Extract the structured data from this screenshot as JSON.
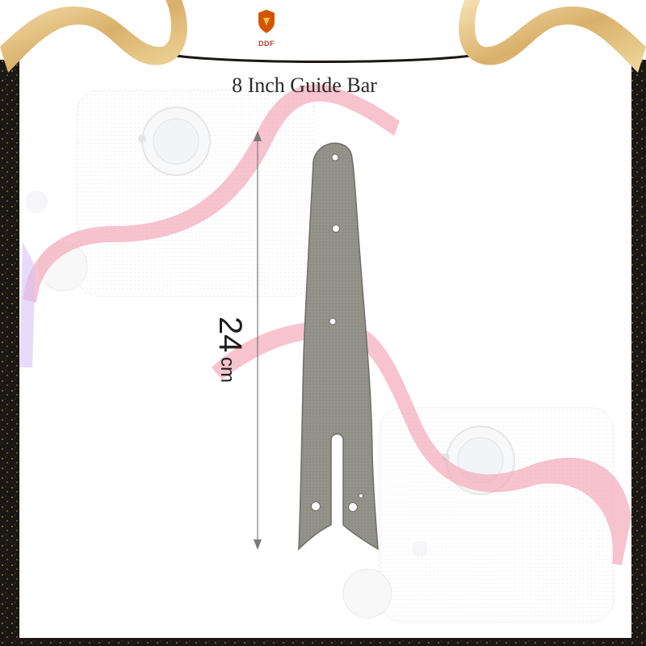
{
  "brand": {
    "name": "DDF",
    "icon": "shield-logo-icon"
  },
  "title": "8 Inch Guide Bar",
  "dimension": {
    "value": "24",
    "unit": "cm"
  },
  "colors": {
    "frame": "#1a1714",
    "gold_ribbon": "#e8c98a",
    "pink_ribbon": "#f2a9bb",
    "guide_bar": "#8f8f88",
    "brand_red": "#c0392b"
  }
}
